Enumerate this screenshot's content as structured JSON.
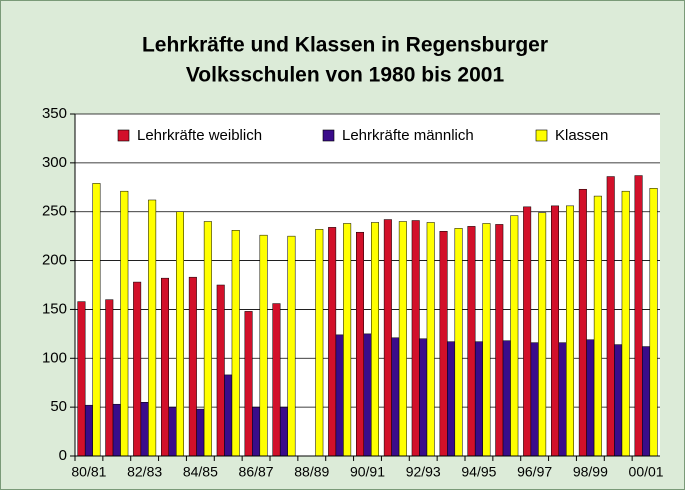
{
  "chart_data": {
    "type": "bar",
    "title": [
      "Lehrkräfte und Klassen in Regensburger",
      "Volksschulen von 1980 bis 2001"
    ],
    "categories": [
      "80/81",
      null,
      "82/83",
      null,
      "84/85",
      null,
      "86/87",
      null,
      "88/89",
      null,
      "90/91",
      null,
      "92/93",
      null,
      "94/95",
      null,
      "96/97",
      null,
      "98/99",
      null,
      "00/01"
    ],
    "series": [
      {
        "name": "Lehrkräfte weiblich",
        "color": "#d2102a",
        "values": [
          158,
          160,
          178,
          182,
          183,
          175,
          148,
          156,
          null,
          234,
          229,
          242,
          241,
          230,
          235,
          237,
          255,
          256,
          273,
          286,
          287
        ]
      },
      {
        "name": "Lehrkräfte männlich",
        "color": "#3a0c8a",
        "values": [
          52,
          53,
          55,
          50,
          48,
          83,
          50,
          50,
          null,
          124,
          125,
          121,
          120,
          117,
          117,
          118,
          116,
          116,
          119,
          114,
          112
        ]
      },
      {
        "name": "Klassen",
        "color": "#ffff00",
        "values": [
          279,
          271,
          262,
          250,
          240,
          231,
          226,
          225,
          232,
          238,
          239,
          240,
          239,
          233,
          238,
          246,
          249,
          256,
          266,
          271,
          274
        ]
      }
    ],
    "ylim": [
      0,
      350
    ],
    "yticks": [
      0,
      50,
      100,
      150,
      200,
      250,
      300,
      350
    ],
    "grid": true,
    "legend": "top"
  }
}
